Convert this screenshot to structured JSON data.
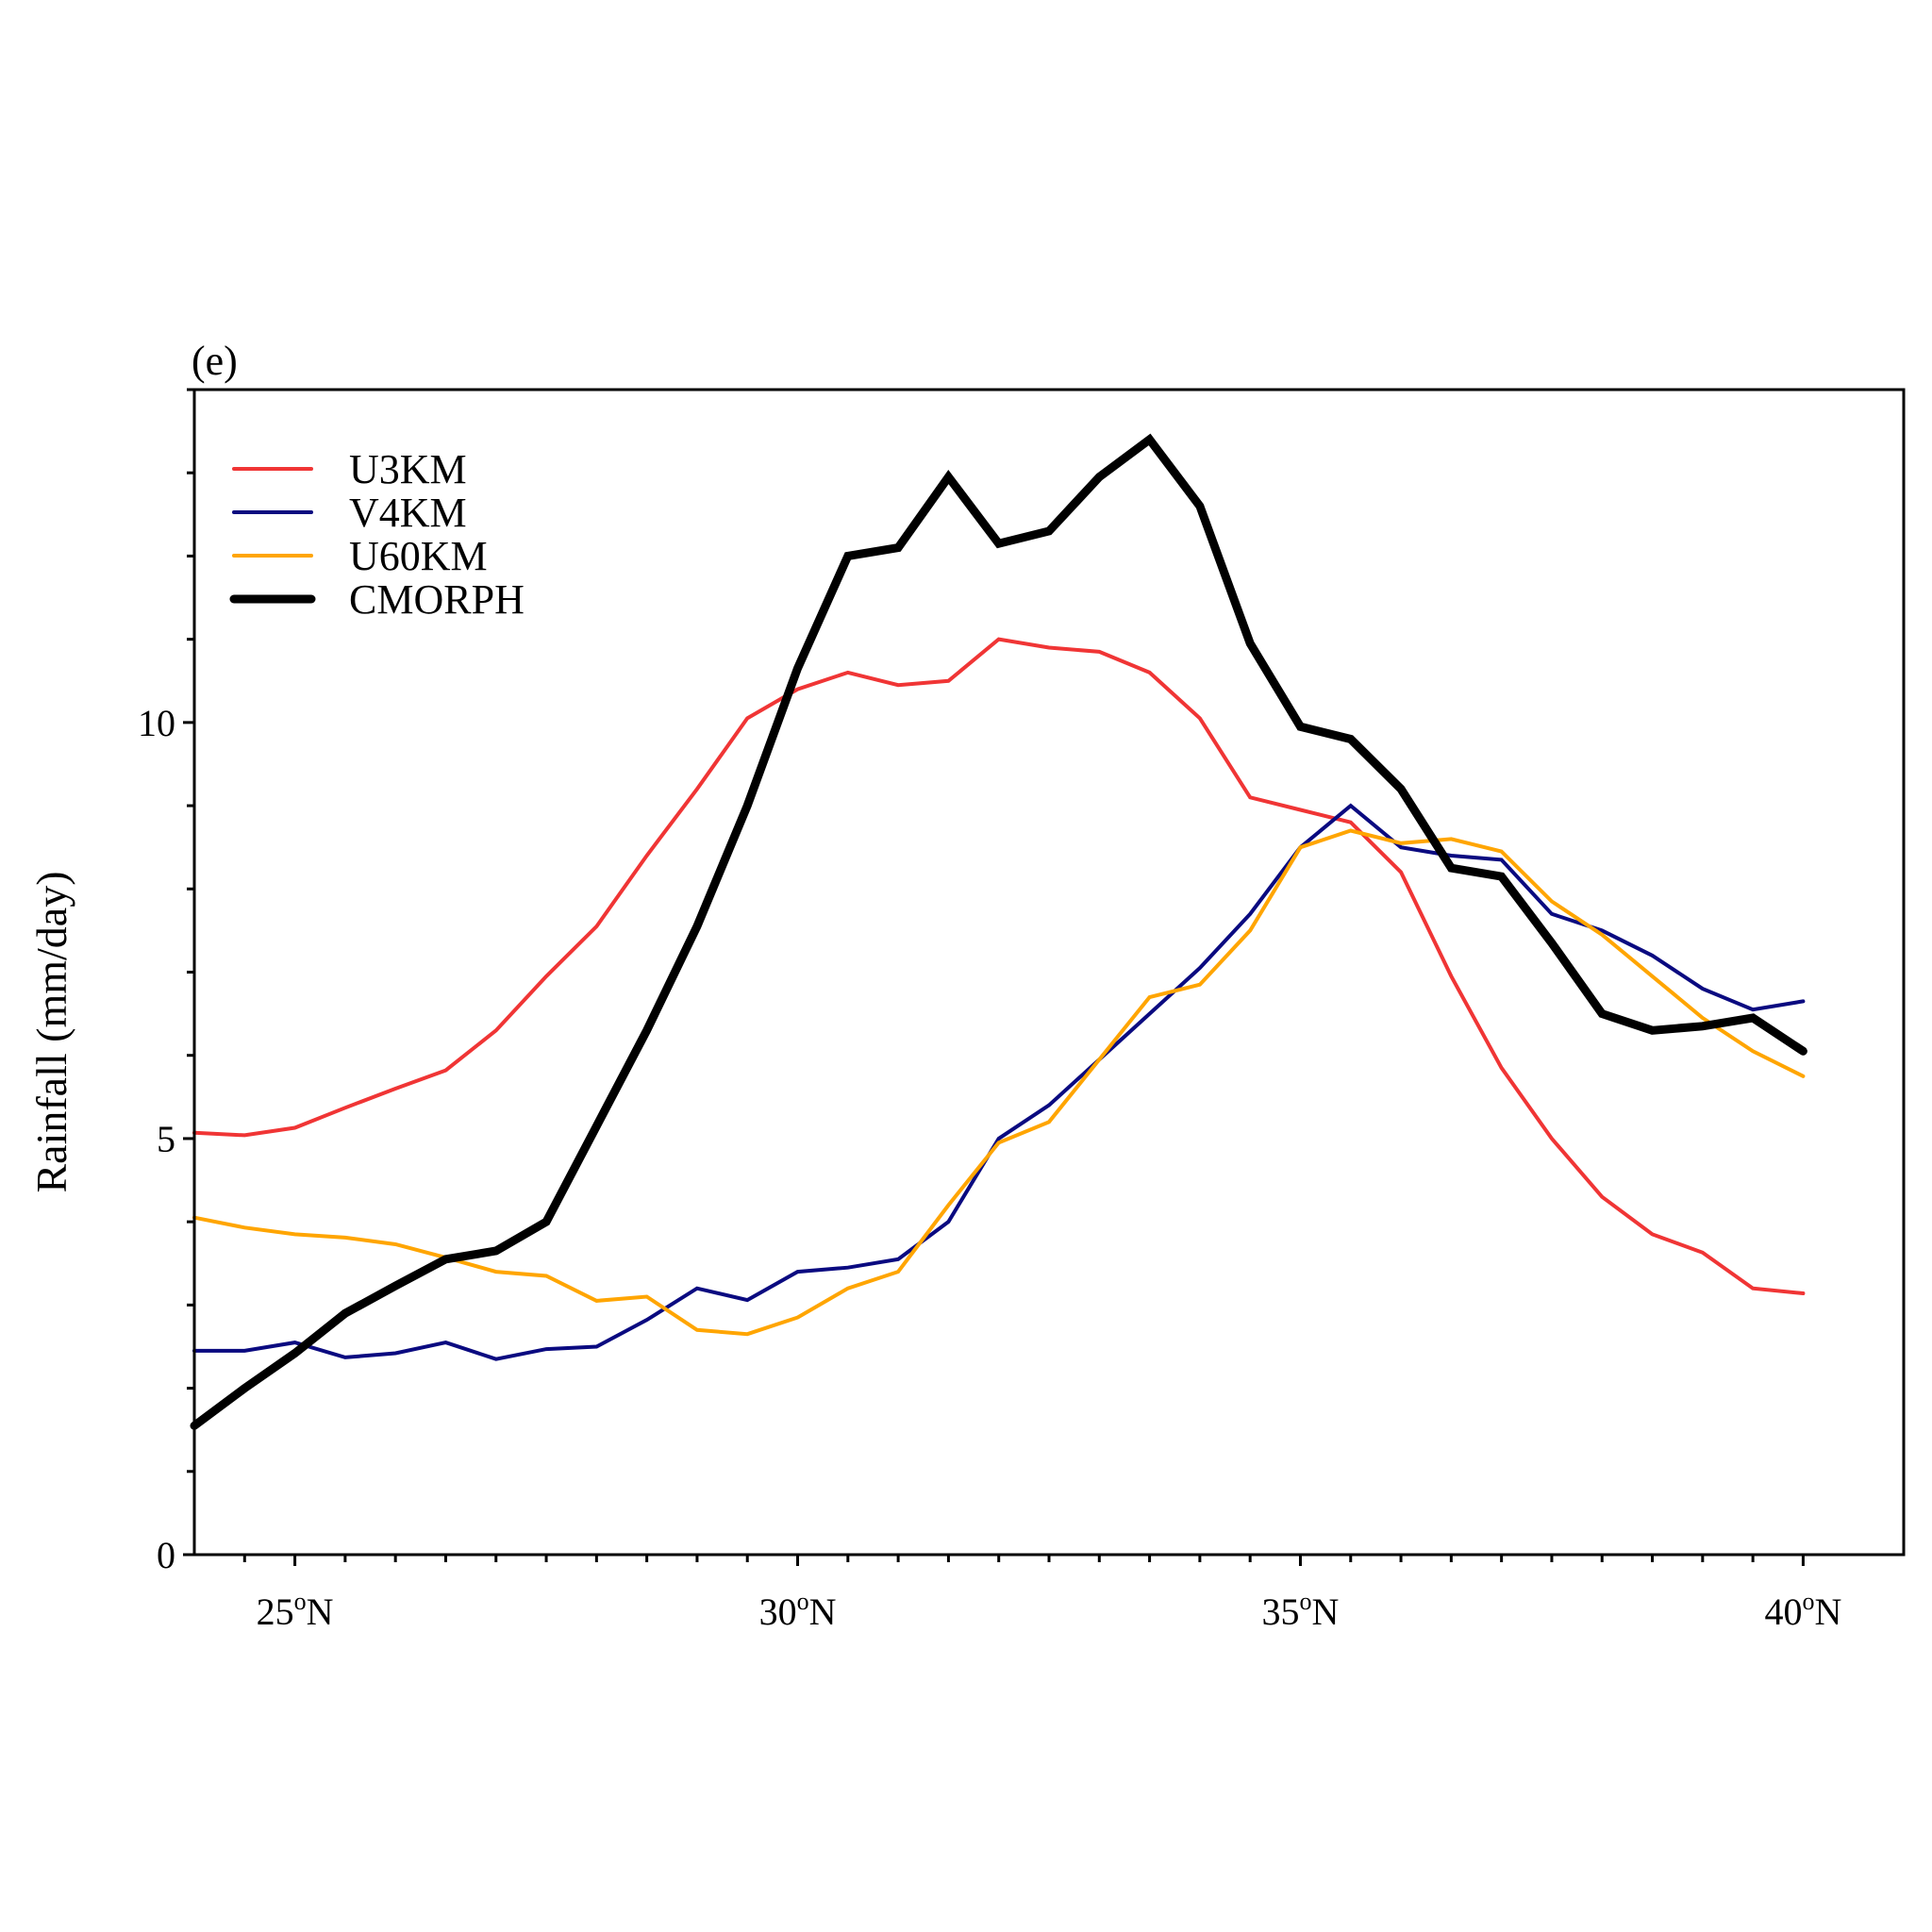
{
  "chart_data": {
    "type": "line",
    "panel_label": "(e)",
    "title": "",
    "xlabel": "",
    "ylabel": "Rainfall (mm/day)",
    "xlim": [
      24,
      41
    ],
    "ylim": [
      0,
      14
    ],
    "grid": false,
    "legend_position": "top-left",
    "y_major_ticks": [
      {
        "value": 0,
        "label": "0"
      },
      {
        "value": 5,
        "label": "5"
      },
      {
        "value": 10,
        "label": "10"
      }
    ],
    "y_minor_ticks": [
      1,
      2,
      3,
      4,
      6,
      7,
      8,
      9,
      11,
      12,
      13,
      14
    ],
    "x_major_ticks": [
      {
        "value": 25,
        "label_num": "25",
        "label_deg": "o",
        "label_dir": "N"
      },
      {
        "value": 30,
        "label_num": "30",
        "label_deg": "o",
        "label_dir": "N"
      },
      {
        "value": 35,
        "label_num": "35",
        "label_deg": "o",
        "label_dir": "N"
      },
      {
        "value": 40,
        "label_num": "40",
        "label_deg": "o",
        "label_dir": "N"
      }
    ],
    "x_minor_ticks": [
      24.5,
      25.5,
      26,
      26.5,
      27,
      27.5,
      28,
      28.5,
      29,
      29.5,
      30.5,
      31,
      31.5,
      32,
      32.5,
      33,
      33.5,
      34,
      34.5,
      35.5,
      36,
      36.5,
      37,
      37.5,
      38,
      38.5,
      39,
      39.5
    ],
    "x": [
      24,
      24.5,
      25,
      25.5,
      26,
      26.5,
      27,
      27.5,
      28,
      28.5,
      29,
      29.5,
      30,
      30.5,
      31,
      31.5,
      32,
      32.5,
      33,
      33.5,
      34,
      34.5,
      35,
      35.5,
      36,
      36.5,
      37,
      37.5,
      38,
      38.5,
      39,
      39.5,
      40
    ],
    "series": [
      {
        "name": "U3KM",
        "color": "#f03535",
        "width": 4,
        "values": [
          5.07,
          5.04,
          5.13,
          5.37,
          5.6,
          5.82,
          6.3,
          6.95,
          7.55,
          8.4,
          9.2,
          10.05,
          10.4,
          10.6,
          10.45,
          10.5,
          11.0,
          10.9,
          10.85,
          10.6,
          10.05,
          9.1,
          8.95,
          8.8,
          8.2,
          6.95,
          5.85,
          5.0,
          4.3,
          3.85,
          3.63,
          3.2,
          3.14
        ]
      },
      {
        "name": "V4KM",
        "color": "#0a0a80",
        "width": 4,
        "values": [
          2.45,
          2.45,
          2.55,
          2.37,
          2.42,
          2.55,
          2.35,
          2.47,
          2.5,
          2.82,
          3.2,
          3.06,
          3.4,
          3.45,
          3.55,
          4.0,
          5.0,
          5.4,
          5.95,
          6.5,
          7.05,
          7.7,
          8.5,
          9.0,
          8.5,
          8.4,
          8.35,
          7.7,
          7.5,
          7.2,
          6.8,
          6.55,
          6.65
        ]
      },
      {
        "name": "U60KM",
        "color": "#ffa500",
        "width": 4,
        "values": [
          4.05,
          3.93,
          3.85,
          3.81,
          3.73,
          3.57,
          3.4,
          3.35,
          3.05,
          3.1,
          2.7,
          2.65,
          2.85,
          3.2,
          3.4,
          4.2,
          4.95,
          5.2,
          5.95,
          6.7,
          6.85,
          7.5,
          8.5,
          8.7,
          8.55,
          8.6,
          8.45,
          7.85,
          7.45,
          6.95,
          6.45,
          6.05,
          5.75
        ]
      },
      {
        "name": "CMORPH",
        "color": "#000000",
        "width": 9,
        "values": [
          1.55,
          2.0,
          2.42,
          2.9,
          3.23,
          3.55,
          3.65,
          4.0,
          5.15,
          6.3,
          7.55,
          9.0,
          10.65,
          12.0,
          12.1,
          12.95,
          12.15,
          12.3,
          12.95,
          13.4,
          12.6,
          10.95,
          9.95,
          9.8,
          9.2,
          8.25,
          8.15,
          7.35,
          6.5,
          6.3,
          6.35,
          6.45,
          6.05
        ]
      }
    ]
  }
}
